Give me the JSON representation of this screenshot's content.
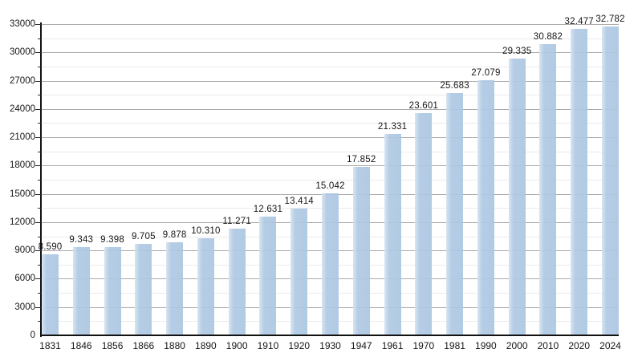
{
  "chart_data": {
    "type": "bar",
    "title": "",
    "xlabel": "",
    "ylabel": "",
    "categories": [
      "1831",
      "1846",
      "1856",
      "1866",
      "1880",
      "1890",
      "1900",
      "1910",
      "1920",
      "1930",
      "1947",
      "1961",
      "1970",
      "1981",
      "1990",
      "2000",
      "2010",
      "2020",
      "2024"
    ],
    "values": [
      8590,
      9343,
      9398,
      9705,
      9878,
      10310,
      11271,
      12631,
      13414,
      15042,
      17852,
      21331,
      23601,
      25683,
      27079,
      29335,
      30882,
      32477,
      32782
    ],
    "value_labels": [
      "8.590",
      "9.343",
      "9.398",
      "9.705",
      "9.878",
      "10.310",
      "11.271",
      "12.631",
      "13.414",
      "15.042",
      "17.852",
      "21.331",
      "23.601",
      "25.683",
      "27.079",
      "29.335",
      "30.882",
      "32.477",
      "32.782"
    ],
    "ylim": [
      0,
      33000
    ],
    "y_major_step": 3000,
    "y_minor_step": 1500,
    "y_tick_labels": [
      "0",
      "3000",
      "6000",
      "9000",
      "12000",
      "15000",
      "18000",
      "21000",
      "24000",
      "27000",
      "30000",
      "33000"
    ],
    "grid": true,
    "legend": false,
    "colors": {
      "bar": "#aec9e3",
      "bar_highlight": "#d6e4f1",
      "major_grid": "#ababab",
      "minor_grid": "#ebebeb",
      "axis": "#111111",
      "text": "#161616",
      "background": "#ffffff"
    }
  }
}
